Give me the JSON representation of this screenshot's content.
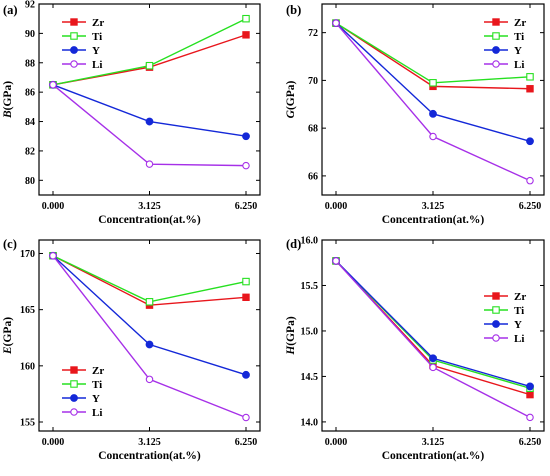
{
  "chart_data": [
    {
      "type": "line",
      "panel_label": "(a)",
      "categories": [
        "0.000",
        "3.125",
        "6.250"
      ],
      "xlabel": "Concentration(at.%)",
      "ylabel_symbol": "B",
      "ylabel_unit": "(GPa)",
      "ylim": [
        79,
        92
      ],
      "yticks": [
        "80",
        "82",
        "84",
        "86",
        "88",
        "90",
        "92"
      ],
      "legend_position": "top-left",
      "series": [
        {
          "name": "Zr",
          "values": [
            86.5,
            87.7,
            89.9
          ]
        },
        {
          "name": "Ti",
          "values": [
            86.5,
            87.8,
            91.0
          ]
        },
        {
          "name": "Y",
          "values": [
            86.5,
            84.0,
            83.0
          ]
        },
        {
          "name": "Li",
          "values": [
            86.5,
            81.1,
            81.0
          ]
        }
      ]
    },
    {
      "type": "line",
      "panel_label": "(b)",
      "categories": [
        "0.000",
        "3.125",
        "6.250"
      ],
      "xlabel": "Concentration(at.%)",
      "ylabel_symbol": "G",
      "ylabel_unit": "(GPa)",
      "ylim": [
        65.2,
        73.2
      ],
      "yticks": [
        "66",
        "68",
        "70",
        "72"
      ],
      "legend_position": "top-right",
      "series": [
        {
          "name": "Zr",
          "values": [
            72.4,
            69.75,
            69.65
          ]
        },
        {
          "name": "Ti",
          "values": [
            72.4,
            69.9,
            70.15
          ]
        },
        {
          "name": "Y",
          "values": [
            72.4,
            68.6,
            67.45
          ]
        },
        {
          "name": "Li",
          "values": [
            72.4,
            67.65,
            65.8
          ]
        }
      ]
    },
    {
      "type": "line",
      "panel_label": "(c)",
      "categories": [
        "0.000",
        "3.125",
        "6.250"
      ],
      "xlabel": "Concentration(at.%)",
      "ylabel_symbol": "E",
      "ylabel_unit": "(GPa)",
      "ylim": [
        154.2,
        171.2
      ],
      "yticks": [
        "155",
        "160",
        "165",
        "170"
      ],
      "legend_position": "bottom-left",
      "series": [
        {
          "name": "Zr",
          "values": [
            169.8,
            165.4,
            166.1
          ]
        },
        {
          "name": "Ti",
          "values": [
            169.8,
            165.7,
            167.5
          ]
        },
        {
          "name": "Y",
          "values": [
            169.8,
            161.9,
            159.2
          ]
        },
        {
          "name": "Li",
          "values": [
            169.8,
            158.8,
            155.4
          ]
        }
      ]
    },
    {
      "type": "line",
      "panel_label": "(d)",
      "categories": [
        "0.000",
        "3.125",
        "6.250"
      ],
      "xlabel": "Concentration(at.%)",
      "ylabel_symbol": "H",
      "ylabel_unit": "(GPa)",
      "ylim": [
        13.9,
        16.0
      ],
      "yticks": [
        "14.0",
        "14.5",
        "15.0",
        "15.5",
        "16.0"
      ],
      "legend_position": "right",
      "series": [
        {
          "name": "Zr",
          "values": [
            15.77,
            14.62,
            14.3
          ]
        },
        {
          "name": "Ti",
          "values": [
            15.77,
            14.68,
            14.37
          ]
        },
        {
          "name": "Y",
          "values": [
            15.77,
            14.7,
            14.39
          ]
        },
        {
          "name": "Li",
          "values": [
            15.77,
            14.6,
            14.05
          ]
        }
      ]
    }
  ],
  "series_colors": {
    "Zr": "#e8161c",
    "Ti": "#26e020",
    "Y": "#1428d8",
    "Li": "#a630e8"
  },
  "series_markers": {
    "Zr": "filled-square",
    "Ti": "open-square",
    "Y": "filled-circle",
    "Li": "open-circle"
  }
}
